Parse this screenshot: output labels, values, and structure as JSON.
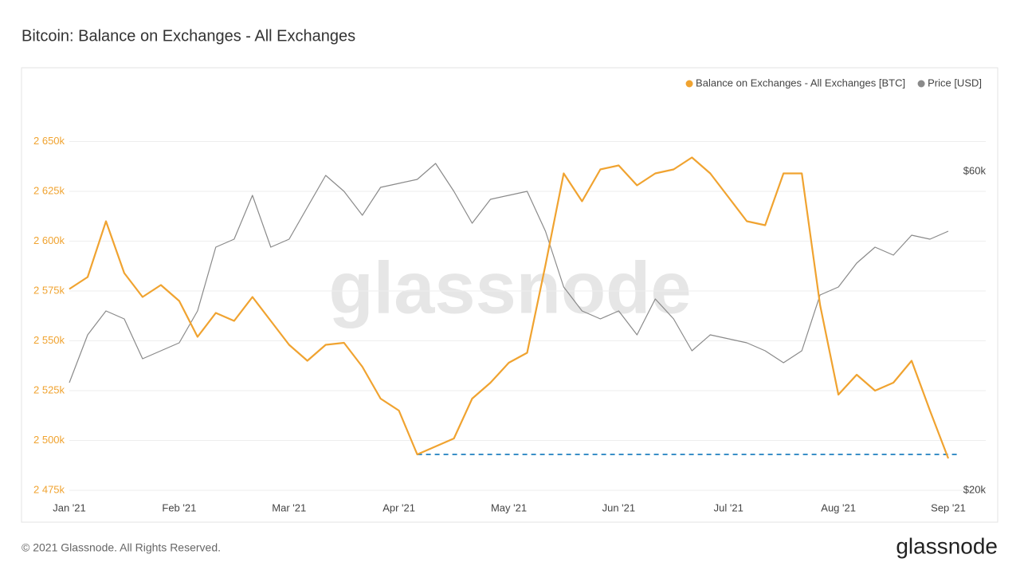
{
  "chart_data": {
    "type": "line",
    "title": "Bitcoin: Balance on Exchanges - All Exchanges",
    "watermark": "glassnode",
    "footer": "© 2021 Glassnode. All Rights Reserved.",
    "brand": "glassnode",
    "legend": "top-right",
    "grid": true,
    "categories": [
      "Jan '21",
      null,
      null,
      null,
      null,
      null,
      "Feb '21",
      null,
      null,
      null,
      null,
      null,
      "Mar '21",
      null,
      null,
      null,
      null,
      null,
      "Apr '21",
      null,
      null,
      null,
      null,
      null,
      "May '21",
      null,
      null,
      null,
      null,
      null,
      "Jun '21",
      null,
      null,
      null,
      null,
      null,
      "Jul '21",
      null,
      null,
      null,
      null,
      null,
      "Aug '21",
      null,
      null,
      null,
      null,
      null,
      "Sep '21"
    ],
    "series": [
      {
        "name": "Balance on Exchanges - All Exchanges [BTC]",
        "color": "#f0a330",
        "axis": "y",
        "values": [
          2576000,
          2582000,
          2610000,
          2584000,
          2572000,
          2578000,
          2570000,
          2552000,
          2564000,
          2560000,
          2572000,
          2560000,
          2548000,
          2540000,
          2548000,
          2549000,
          2537000,
          2521000,
          2515000,
          2493000,
          2497000,
          2501000,
          2521000,
          2529000,
          2539000,
          2544000,
          2588000,
          2634000,
          2620000,
          2636000,
          2638000,
          2628000,
          2634000,
          2636000,
          2642000,
          2634000,
          2622000,
          2610000,
          2608000,
          2634000,
          2634000,
          2568000,
          2523000,
          2533000,
          2525000,
          2529000,
          2540000,
          2515000,
          2491000
        ]
      },
      {
        "name": "Price [USD]",
        "color": "#8a8a8a",
        "axis": "y2",
        "values": [
          33500,
          39500,
          42500,
          41500,
          36500,
          37500,
          38500,
          42500,
          50500,
          51500,
          57000,
          50500,
          51500,
          55500,
          59500,
          57500,
          54500,
          58000,
          58500,
          59000,
          61000,
          57500,
          53500,
          56500,
          57000,
          57500,
          52500,
          45500,
          42500,
          41500,
          42500,
          39500,
          44000,
          41500,
          37500,
          39500,
          39000,
          38500,
          37500,
          36000,
          37500,
          44500,
          45500,
          48500,
          50500,
          49500,
          52000,
          51500,
          52500
        ]
      }
    ],
    "ylim": [
      2475000,
      2675000
    ],
    "yticks": [
      {
        "value": 2475000,
        "label": "2 475k"
      },
      {
        "value": 2500000,
        "label": "2 500k"
      },
      {
        "value": 2525000,
        "label": "2 525k"
      },
      {
        "value": 2550000,
        "label": "2 550k"
      },
      {
        "value": 2575000,
        "label": "2 575k"
      },
      {
        "value": 2600000,
        "label": "2 600k"
      },
      {
        "value": 2625000,
        "label": "2 625k"
      },
      {
        "value": 2650000,
        "label": "2 650k"
      }
    ],
    "y2lim": [
      20000,
      70000
    ],
    "y2ticks": [
      {
        "value": 20000,
        "label": "$20k"
      },
      {
        "value": 60000,
        "label": "$60k"
      }
    ],
    "reference_line": {
      "value": 2493000,
      "color": "#3a8fc7",
      "style": "dashed"
    }
  }
}
